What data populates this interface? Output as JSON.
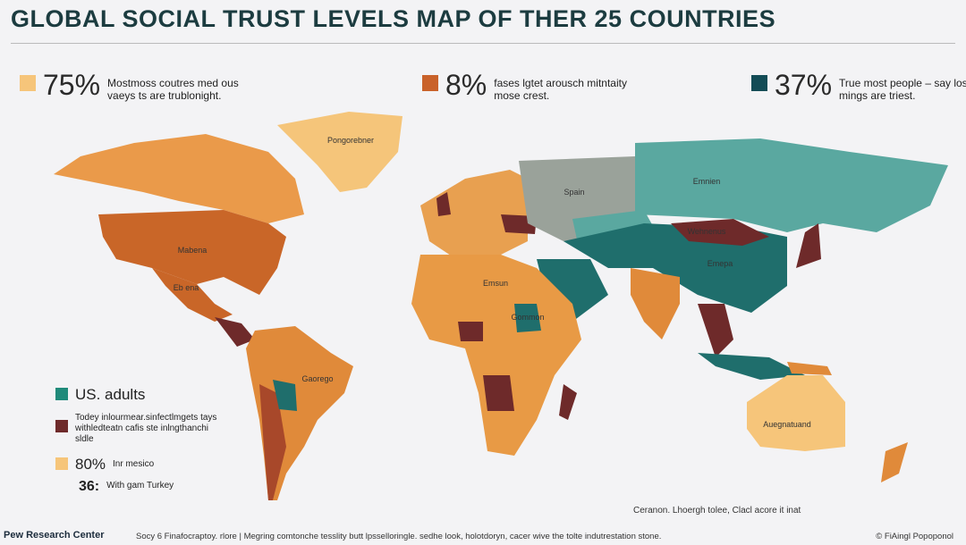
{
  "header": {
    "title": "GLOBAL SOCIAL TRUST LEVELS MAP OF THER 25 COUNTRIES"
  },
  "stats": [
    {
      "value": "75%",
      "text": "Mostmoss coutres med ous vaeys ts are trublonight."
    },
    {
      "value": "8%",
      "text": "fases lgtet arousch mitntaity mose crest."
    },
    {
      "value": "37%",
      "text": "True most people – say lost mings are triest."
    }
  ],
  "map": {
    "labels": [
      "Pongorebner",
      "Mabena",
      "Eb ena",
      "Gaorego",
      "Spain",
      "Emnien",
      "Wehnenus",
      "Emepa",
      "Emsun",
      "Gommon",
      "Auegnatuand"
    ]
  },
  "legend": [
    {
      "label": "US. adults"
    },
    {
      "label": "Todey inlourmear.sinfectlmgets tays withledteatn cafis ste inlngthanchi sldle"
    },
    {
      "value": "80%",
      "label": "Inr mesico"
    },
    {
      "value": "36:",
      "label": "With gam Turkey"
    }
  ],
  "note": "Ceranon. Lhoergh tolee, Clacl acore it inat",
  "footer": {
    "brand": "Pew Research Center",
    "source": "Socy 6 Finafocraptoy. rlore | Megring comtonche tesslity butt lpsselloringle. sedhe look, holotdoryn, cacer wive the tolte indutrestation stone.",
    "credit": "© FiAingl Popoponol"
  }
}
